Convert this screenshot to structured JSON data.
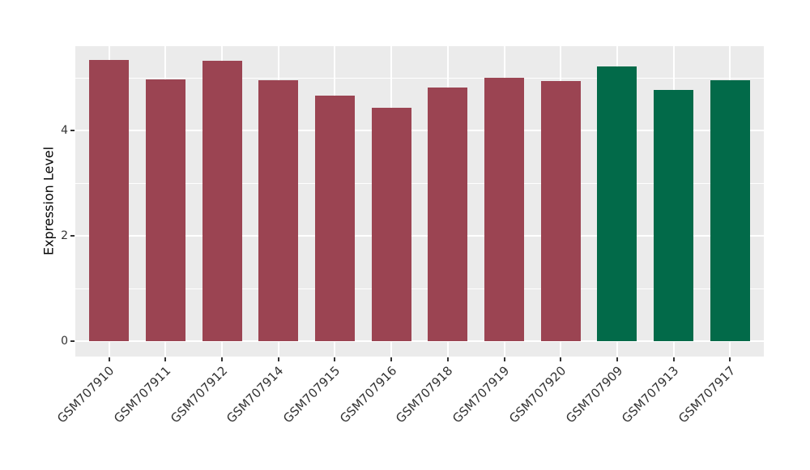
{
  "chart_data": {
    "type": "bar",
    "title": "",
    "xlabel": "",
    "ylabel": "Expression Level",
    "categories": [
      "GSM707910",
      "GSM707911",
      "GSM707912",
      "GSM707914",
      "GSM707915",
      "GSM707916",
      "GSM707918",
      "GSM707919",
      "GSM707920",
      "GSM707909",
      "GSM707913",
      "GSM707917"
    ],
    "values": [
      5.34,
      4.97,
      5.32,
      4.96,
      4.66,
      4.43,
      4.82,
      5.0,
      4.94,
      5.22,
      4.77,
      4.95
    ],
    "colors": [
      "#9B4452",
      "#9B4452",
      "#9B4452",
      "#9B4452",
      "#9B4452",
      "#9B4452",
      "#9B4452",
      "#9B4452",
      "#9B4452",
      "#026A49",
      "#026A49",
      "#026A49"
    ],
    "group_colors": {
      "maroon_group": "#9B4452",
      "green_group": "#026A49"
    },
    "y_ticks": [
      0,
      2,
      4
    ],
    "y_minor_ticks": [
      1,
      3,
      5
    ],
    "ylim": [
      -0.3,
      5.6
    ],
    "bar_width_fraction": 0.7,
    "x_label_rotation_deg": -45,
    "grid": true,
    "legend": "none",
    "panel_bg": "#EBEBEB",
    "grid_color": "#FFFFFF",
    "tick_mark_color": "#333333",
    "axis_text_color": "#333333"
  }
}
